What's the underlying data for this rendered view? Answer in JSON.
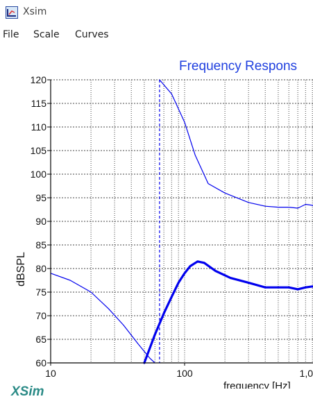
{
  "window": {
    "title": "Xsim",
    "icon": "xsim-app-icon"
  },
  "menu": {
    "items": [
      "File",
      "Scale",
      "Curves"
    ]
  },
  "chart_data": {
    "type": "line",
    "title": "Frequency Respons",
    "xlabel": "frequency [Hz]",
    "ylabel": "dBSPL",
    "x_scale": "log",
    "xlim": [
      10,
      1000
    ],
    "ylim": [
      60,
      120
    ],
    "x_tick_labels": [
      "10",
      "100",
      "1,0"
    ],
    "y_tick_labels": [
      "120",
      "115",
      "110",
      "105",
      "100",
      "95",
      "90",
      "85",
      "80",
      "75",
      "70",
      "65",
      "60"
    ],
    "grid": true,
    "marker_freq_hz": 65,
    "series": [
      {
        "thin": true,
        "x": [
          65,
          80,
          100,
          120,
          150,
          200,
          300,
          400,
          500,
          600,
          700,
          800,
          900,
          1000
        ],
        "y": [
          120,
          117,
          111,
          104,
          98,
          96,
          94,
          93.2,
          93,
          93,
          92.8,
          93.6,
          93.4,
          92.8
        ]
      },
      {
        "thin": true,
        "x": [
          10,
          14,
          20,
          27,
          35,
          45,
          55,
          60
        ],
        "y": [
          79,
          77.5,
          75,
          71.5,
          68,
          64,
          61,
          60
        ]
      },
      {
        "thin": false,
        "x": [
          50,
          60,
          70,
          80,
          90,
          100,
          110,
          125,
          140,
          170,
          220,
          300,
          400,
          600,
          700,
          800,
          900,
          1000
        ],
        "y": [
          60,
          66,
          70.5,
          74,
          77,
          79,
          80.5,
          81.5,
          81.2,
          79.5,
          78,
          77,
          76,
          76,
          75.6,
          76,
          76.2,
          76
        ]
      }
    ]
  },
  "brand": {
    "logo_text": "XSim",
    "color": "#2a8a86"
  },
  "colors": {
    "curve": "#0000ee",
    "title": "#1f3fdf",
    "grid": "#444444",
    "marker": "#0000ee"
  }
}
